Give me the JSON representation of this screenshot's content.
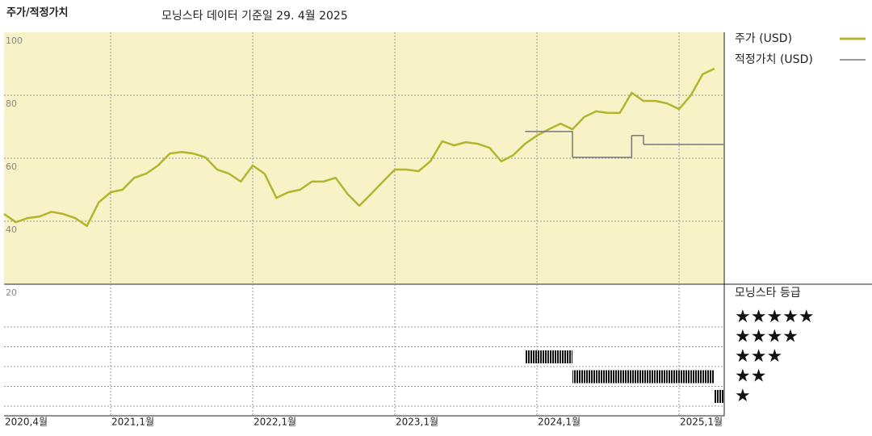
{
  "chart_data": {
    "type": "line",
    "title": "주가/적정가치",
    "subtitle": "모닝스타 데이터 기준일 29. 4월 2025",
    "x": [
      "2020-04",
      "2020-05",
      "2020-06",
      "2020-07",
      "2020-08",
      "2020-09",
      "2020-10",
      "2020-11",
      "2020-12",
      "2021-01",
      "2021-02",
      "2021-03",
      "2021-04",
      "2021-05",
      "2021-06",
      "2021-07",
      "2021-08",
      "2021-09",
      "2021-10",
      "2021-11",
      "2021-12",
      "2022-01",
      "2022-02",
      "2022-03",
      "2022-04",
      "2022-05",
      "2022-06",
      "2022-07",
      "2022-08",
      "2022-09",
      "2022-10",
      "2022-11",
      "2022-12",
      "2023-01",
      "2023-02",
      "2023-03",
      "2023-04",
      "2023-05",
      "2023-06",
      "2023-07",
      "2023-08",
      "2023-09",
      "2023-10",
      "2023-11",
      "2023-12",
      "2024-01",
      "2024-02",
      "2024-03",
      "2024-04",
      "2024-05",
      "2024-06",
      "2024-07",
      "2024-08",
      "2024-09",
      "2024-10",
      "2024-11",
      "2024-12",
      "2025-01",
      "2025-02",
      "2025-03",
      "2025-04"
    ],
    "xlim": [
      "2020-04",
      "2025-04"
    ],
    "xticks": [
      {
        "value": "2020-04",
        "label": "2020,4월"
      },
      {
        "value": "2021-01",
        "label": "2021,1월"
      },
      {
        "value": "2022-01",
        "label": "2022,1월"
      },
      {
        "value": "2023-01",
        "label": "2023,1월"
      },
      {
        "value": "2024-01",
        "label": "2024,1월"
      },
      {
        "value": "2025-01",
        "label": "2025,1월"
      }
    ],
    "ylim": [
      20,
      100
    ],
    "yticks": [
      20,
      40,
      60,
      80,
      100
    ],
    "grid": true,
    "series": [
      {
        "name": "주가 (USD)",
        "color": "#b3b52f",
        "values": [
          42.3,
          39.7,
          41,
          41.5,
          43,
          42.3,
          41,
          38.5,
          46,
          49.2,
          50,
          53.8,
          55.1,
          57.7,
          61.5,
          62,
          61.5,
          60.3,
          56.4,
          55.1,
          52.6,
          57.7,
          55.1,
          47.4,
          49.2,
          50,
          52.6,
          52.6,
          53.8,
          48.7,
          44.9,
          48.7,
          52.6,
          56.4,
          56.4,
          55.9,
          59,
          65.4,
          64.1,
          65.1,
          64.6,
          63.3,
          59,
          61,
          64.6,
          67.2,
          69.2,
          71,
          69.2,
          73.1,
          74.9,
          74.4,
          74.4,
          80.8,
          78.2,
          78.2,
          77.4,
          75.6,
          80,
          86.7,
          88.5
        ]
      },
      {
        "name": "적정가치 (USD)",
        "color": "#777777",
        "step": true,
        "values": [
          null,
          null,
          null,
          null,
          null,
          null,
          null,
          null,
          null,
          null,
          null,
          null,
          null,
          null,
          null,
          null,
          null,
          null,
          null,
          null,
          null,
          null,
          null,
          null,
          null,
          null,
          null,
          null,
          null,
          null,
          null,
          null,
          null,
          null,
          null,
          null,
          null,
          null,
          null,
          null,
          null,
          null,
          null,
          null,
          68.5,
          68.5,
          68.5,
          68.5,
          60.3,
          60.3,
          60.3,
          60.3,
          60.3,
          67.2,
          64.4,
          64.4,
          64.4,
          64.4,
          64.4,
          64.4,
          64.4
        ]
      }
    ],
    "ratings": {
      "title": "모닝스타 등급",
      "levels": [
        5,
        4,
        3,
        2,
        1
      ],
      "labels": [
        "★★★★★",
        "★★★★",
        "★★★",
        "★★",
        "★"
      ],
      "values": [
        null,
        null,
        null,
        null,
        null,
        null,
        null,
        null,
        null,
        null,
        null,
        null,
        null,
        null,
        null,
        null,
        null,
        null,
        null,
        null,
        null,
        null,
        null,
        null,
        null,
        null,
        null,
        null,
        null,
        null,
        null,
        null,
        null,
        null,
        null,
        null,
        null,
        null,
        null,
        null,
        null,
        null,
        null,
        null,
        3,
        3,
        3,
        3,
        2,
        2,
        2,
        2,
        2,
        2,
        2,
        2,
        2,
        2,
        2,
        2,
        1
      ]
    }
  }
}
